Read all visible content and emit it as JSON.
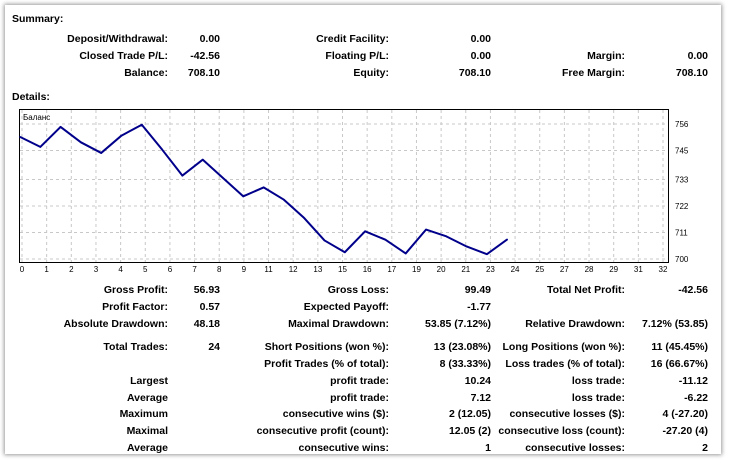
{
  "summary": {
    "title": "Summary:",
    "deposit_label": "Deposit/Withdrawal:",
    "deposit": "0.00",
    "credit_label": "Credit Facility:",
    "credit": "0.00",
    "closed_label": "Closed Trade P/L:",
    "closed": "-42.56",
    "floating_label": "Floating P/L:",
    "floating": "0.00",
    "margin_label": "Margin:",
    "margin": "0.00",
    "balance_label": "Balance:",
    "balance": "708.10",
    "equity_label": "Equity:",
    "equity": "708.10",
    "free_margin_label": "Free Margin:",
    "free_margin": "708.10"
  },
  "details": {
    "title": "Details:",
    "rows": [
      [
        "Gross Profit:",
        "56.93",
        "Gross Loss:",
        "99.49",
        "Total Net Profit:",
        "-42.56"
      ],
      [
        "Profit Factor:",
        "0.57",
        "Expected Payoff:",
        "-1.77",
        "",
        ""
      ],
      [
        "Absolute Drawdown:",
        "48.18",
        "Maximal Drawdown:",
        "53.85 (7.12%)",
        "Relative Drawdown:",
        "7.12% (53.85)"
      ],
      [
        "Total Trades:",
        "24",
        "Short Positions (won %):",
        "13 (23.08%)",
        "Long Positions (won %):",
        "11 (45.45%)"
      ],
      [
        "",
        "",
        "Profit Trades (% of total):",
        "8 (33.33%)",
        "Loss trades (% of total):",
        "16 (66.67%)"
      ],
      [
        "Largest",
        "",
        "profit trade:",
        "10.24",
        "loss trade:",
        "-11.12"
      ],
      [
        "Average",
        "",
        "profit trade:",
        "7.12",
        "loss trade:",
        "-6.22"
      ],
      [
        "Maximum",
        "",
        "consecutive wins ($):",
        "2 (12.05)",
        "consecutive losses ($):",
        "4 (-27.20)"
      ],
      [
        "Maximal",
        "",
        "consecutive profit (count):",
        "12.05 (2)",
        "consecutive loss (count):",
        "-27.20 (4)"
      ],
      [
        "Average",
        "",
        "consecutive wins:",
        "1",
        "consecutive losses:",
        "2"
      ]
    ]
  },
  "chart_data": {
    "type": "line",
    "title": "Баланс",
    "xlabel": "",
    "ylabel": "",
    "x_tick_labels": [
      "0",
      "1",
      "2",
      "3",
      "4",
      "5",
      "6",
      "7",
      "8",
      "9",
      "11",
      "12",
      "13",
      "15",
      "16",
      "17",
      "19",
      "20",
      "21",
      "23",
      "24",
      "25",
      "27",
      "28",
      "29",
      "31",
      "32"
    ],
    "y_ticks": [
      756,
      745,
      733,
      722,
      711,
      700
    ],
    "ylim": [
      700,
      756
    ],
    "xlim": [
      0,
      32
    ],
    "grid": true,
    "series": [
      {
        "name": "Баланс",
        "color": "#00008b",
        "x": [
          0,
          1,
          2,
          3,
          4,
          5,
          6,
          7,
          8,
          9,
          10,
          11,
          12,
          13,
          14,
          15,
          16,
          17,
          18,
          19,
          20,
          21,
          22,
          23,
          24
        ],
        "values": [
          750.66,
          746.5,
          754.8,
          748.4,
          744.0,
          751.2,
          755.7,
          745.4,
          734.6,
          741.2,
          733.6,
          726.0,
          729.7,
          724.6,
          717.0,
          707.7,
          702.8,
          711.5,
          708.0,
          702.3,
          712.2,
          709.4,
          705.2,
          702.0,
          708.1
        ]
      }
    ]
  }
}
